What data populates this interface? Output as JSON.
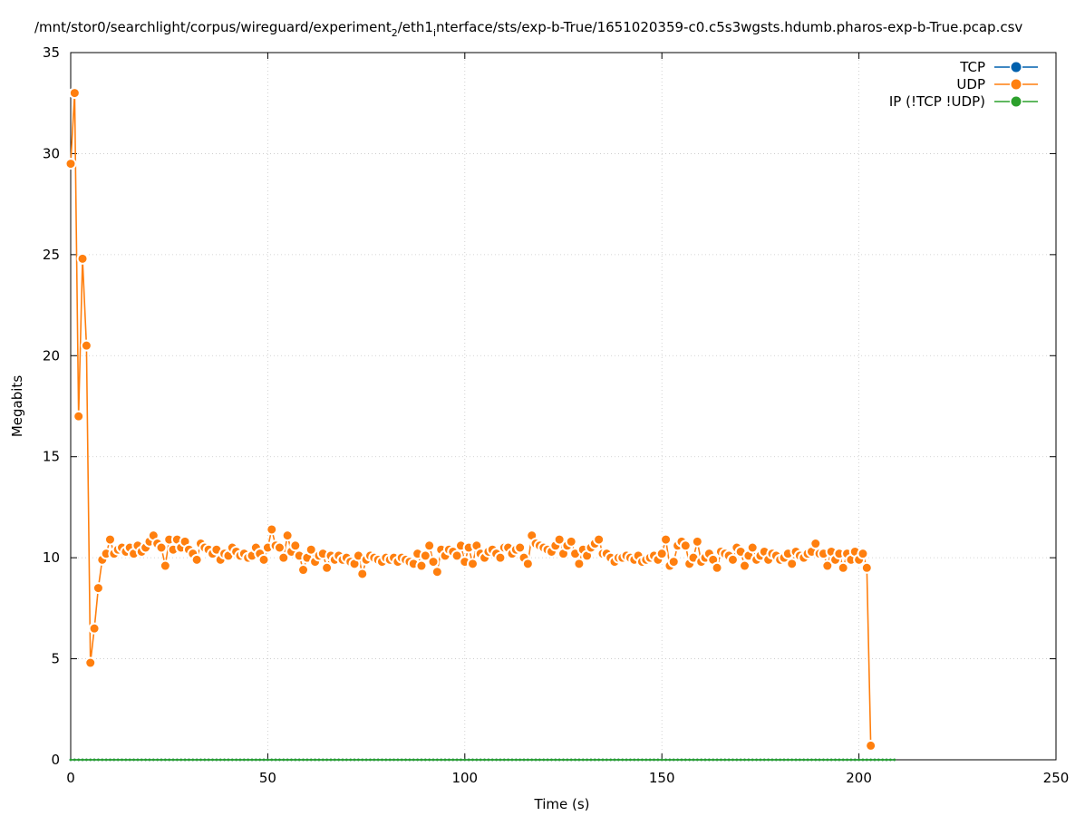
{
  "chart_data": {
    "type": "line",
    "title": [
      "/mnt/stor0/searchlight/corpus/wireguard/experiment",
      "2",
      "/eth1",
      "i",
      "nterface/sts/exp-b-True/1651020359-c0.c5s3wgsts.hdumb.pharos-exp-b-True.pcap.csv"
    ],
    "xlabel": "Time (s)",
    "ylabel": "Megabits",
    "xlim": [
      0,
      250
    ],
    "ylim": [
      0,
      35
    ],
    "xticks": [
      0,
      50,
      100,
      150,
      200,
      250
    ],
    "yticks": [
      0,
      5,
      10,
      15,
      20,
      25,
      30,
      35
    ],
    "grid": true,
    "legend": "top-right",
    "x": [
      0,
      1,
      2,
      3,
      4,
      5,
      6,
      7,
      8,
      9,
      10,
      11,
      12,
      13,
      14,
      15,
      16,
      17,
      18,
      19,
      20,
      21,
      22,
      23,
      24,
      25,
      26,
      27,
      28,
      29,
      30,
      31,
      32,
      33,
      34,
      35,
      36,
      37,
      38,
      39,
      40,
      41,
      42,
      43,
      44,
      45,
      46,
      47,
      48,
      49,
      50,
      51,
      52,
      53,
      54,
      55,
      56,
      57,
      58,
      59,
      60,
      61,
      62,
      63,
      64,
      65,
      66,
      67,
      68,
      69,
      70,
      71,
      72,
      73,
      74,
      75,
      76,
      77,
      78,
      79,
      80,
      81,
      82,
      83,
      84,
      85,
      86,
      87,
      88,
      89,
      90,
      91,
      92,
      93,
      94,
      95,
      96,
      97,
      98,
      99,
      100,
      101,
      102,
      103,
      104,
      105,
      106,
      107,
      108,
      109,
      110,
      111,
      112,
      113,
      114,
      115,
      116,
      117,
      118,
      119,
      120,
      121,
      122,
      123,
      124,
      125,
      126,
      127,
      128,
      129,
      130,
      131,
      132,
      133,
      134,
      135,
      136,
      137,
      138,
      139,
      140,
      141,
      142,
      143,
      144,
      145,
      146,
      147,
      148,
      149,
      150,
      151,
      152,
      153,
      154,
      155,
      156,
      157,
      158,
      159,
      160,
      161,
      162,
      163,
      164,
      165,
      166,
      167,
      168,
      169,
      170,
      171,
      172,
      173,
      174,
      175,
      176,
      177,
      178,
      179,
      180,
      181,
      182,
      183,
      184,
      185,
      186,
      187,
      188,
      189,
      190,
      191,
      192,
      193,
      194,
      195,
      196,
      197,
      198,
      199,
      200,
      201,
      202,
      203,
      204,
      205,
      206,
      207,
      208,
      209
    ],
    "series": [
      {
        "name": "TCP",
        "color": "#0060ad",
        "values": [
          0,
          0,
          0,
          0,
          0,
          0,
          0,
          0,
          0,
          0,
          0,
          0,
          0,
          0,
          0,
          0,
          0,
          0,
          0,
          0,
          0,
          0,
          0,
          0,
          0,
          0,
          0,
          0,
          0,
          0,
          0,
          0,
          0,
          0,
          0,
          0,
          0,
          0,
          0,
          0,
          0,
          0,
          0,
          0,
          0,
          0,
          0,
          0,
          0,
          0,
          0,
          0,
          0,
          0,
          0,
          0,
          0,
          0,
          0,
          0,
          0,
          0,
          0,
          0,
          0,
          0,
          0,
          0,
          0,
          0,
          0,
          0,
          0,
          0,
          0,
          0,
          0,
          0,
          0,
          0,
          0,
          0,
          0,
          0,
          0,
          0,
          0,
          0,
          0,
          0,
          0,
          0,
          0,
          0,
          0,
          0,
          0,
          0,
          0,
          0,
          0,
          0,
          0,
          0,
          0,
          0,
          0,
          0,
          0,
          0,
          0,
          0,
          0,
          0,
          0,
          0,
          0,
          0,
          0,
          0,
          0,
          0,
          0,
          0,
          0,
          0,
          0,
          0,
          0,
          0,
          0,
          0,
          0,
          0,
          0,
          0,
          0,
          0,
          0,
          0,
          0,
          0,
          0,
          0,
          0,
          0,
          0,
          0,
          0,
          0,
          0,
          0,
          0,
          0,
          0,
          0,
          0,
          0,
          0,
          0,
          0,
          0,
          0,
          0,
          0,
          0,
          0,
          0,
          0,
          0,
          0,
          0,
          0,
          0,
          0,
          0,
          0,
          0,
          0,
          0,
          0,
          0,
          0,
          0,
          0,
          0,
          0,
          0,
          0,
          0,
          0,
          0,
          0,
          0,
          0,
          0,
          0,
          0,
          0,
          0,
          0,
          0,
          0,
          0,
          0,
          0,
          0,
          0,
          0,
          0
        ]
      },
      {
        "name": "UDP",
        "color": "#ff7f0e",
        "values": [
          29.5,
          33,
          17,
          24.8,
          20.5,
          4.8,
          6.5,
          8.5,
          9.9,
          10.2,
          10.9,
          10.2,
          10.4,
          10.5,
          10.3,
          10.5,
          10.2,
          10.6,
          10.3,
          10.5,
          10.8,
          11.1,
          10.7,
          10.5,
          9.6,
          10.9,
          10.4,
          10.9,
          10.5,
          10.8,
          10.4,
          10.2,
          9.9,
          10.7,
          10.5,
          10.4,
          10.2,
          10.4,
          9.9,
          10.2,
          10.1,
          10.5,
          10.3,
          10.1,
          10.2,
          10.0,
          10.1,
          10.5,
          10.2,
          9.9,
          10.5,
          11.4,
          10.6,
          10.5,
          10.0,
          11.1,
          10.3,
          10.6,
          10.1,
          9.4,
          10.0,
          10.4,
          9.8,
          10.1,
          10.2,
          9.5,
          10.1,
          9.9,
          10.1,
          9.9,
          10.0,
          9.8,
          9.7,
          10.1,
          9.2,
          9.9,
          10.1,
          10.0,
          9.9,
          9.8,
          10.0,
          9.9,
          10.0,
          9.8,
          10.0,
          9.9,
          9.8,
          9.7,
          10.2,
          9.6,
          10.1,
          10.6,
          9.8,
          9.3,
          10.4,
          10.1,
          10.4,
          10.3,
          10.1,
          10.6,
          9.8,
          10.5,
          9.7,
          10.6,
          10.2,
          10.0,
          10.3,
          10.4,
          10.2,
          10.0,
          10.5,
          10.5,
          10.2,
          10.4,
          10.5,
          10.0,
          9.7,
          11.1,
          10.7,
          10.6,
          10.5,
          10.4,
          10.3,
          10.6,
          10.9,
          10.2,
          10.6,
          10.8,
          10.2,
          9.7,
          10.4,
          10.1,
          10.5,
          10.7,
          10.9,
          10.2,
          10.2,
          10.0,
          9.8,
          10.0,
          10.0,
          10.1,
          10.0,
          9.9,
          10.1,
          9.8,
          9.9,
          10.0,
          10.1,
          9.9,
          10.2,
          10.9,
          9.6,
          9.8,
          10.6,
          10.8,
          10.6,
          9.7,
          10.0,
          10.8,
          9.8,
          10.0,
          10.2,
          9.9,
          9.5,
          10.3,
          10.2,
          10.1,
          9.9,
          10.5,
          10.3,
          9.6,
          10.1,
          10.5,
          9.9,
          10.1,
          10.3,
          9.9,
          10.2,
          10.1,
          9.9,
          10.0,
          10.2,
          9.7,
          10.3,
          10.1,
          10.0,
          10.2,
          10.3,
          10.7,
          10.2,
          10.2,
          9.6,
          10.3,
          9.9,
          10.2,
          9.5,
          10.2,
          9.9,
          10.3,
          9.9,
          10.2,
          9.5,
          0.7,
          null,
          null,
          null,
          null,
          null,
          null
        ]
      },
      {
        "name": "IP (!TCP  !UDP)",
        "color": "#2ca02c",
        "values": [
          0,
          0,
          0,
          0,
          0,
          0,
          0,
          0,
          0,
          0,
          0,
          0,
          0,
          0,
          0,
          0,
          0,
          0,
          0,
          0,
          0,
          0,
          0,
          0,
          0,
          0,
          0,
          0,
          0,
          0,
          0,
          0,
          0,
          0,
          0,
          0,
          0,
          0,
          0,
          0,
          0,
          0,
          0,
          0,
          0,
          0,
          0,
          0,
          0,
          0,
          0,
          0,
          0,
          0,
          0,
          0,
          0,
          0,
          0,
          0,
          0,
          0,
          0,
          0,
          0,
          0,
          0,
          0,
          0,
          0,
          0,
          0,
          0,
          0,
          0,
          0,
          0,
          0,
          0,
          0,
          0,
          0,
          0,
          0,
          0,
          0,
          0,
          0,
          0,
          0,
          0,
          0,
          0,
          0,
          0,
          0,
          0,
          0,
          0,
          0,
          0,
          0,
          0,
          0,
          0,
          0,
          0,
          0,
          0,
          0,
          0,
          0,
          0,
          0,
          0,
          0,
          0,
          0,
          0,
          0,
          0,
          0,
          0,
          0,
          0,
          0,
          0,
          0,
          0,
          0,
          0,
          0,
          0,
          0,
          0,
          0,
          0,
          0,
          0,
          0,
          0,
          0,
          0,
          0,
          0,
          0,
          0,
          0,
          0,
          0,
          0,
          0,
          0,
          0,
          0,
          0,
          0,
          0,
          0,
          0,
          0,
          0,
          0,
          0,
          0,
          0,
          0,
          0,
          0,
          0,
          0,
          0,
          0,
          0,
          0,
          0,
          0,
          0,
          0,
          0,
          0,
          0,
          0,
          0,
          0,
          0,
          0,
          0,
          0,
          0,
          0,
          0,
          0,
          0,
          0,
          0,
          0,
          0,
          0,
          0,
          0,
          0,
          0,
          0,
          0,
          0,
          0,
          0,
          0,
          0
        ]
      }
    ]
  }
}
